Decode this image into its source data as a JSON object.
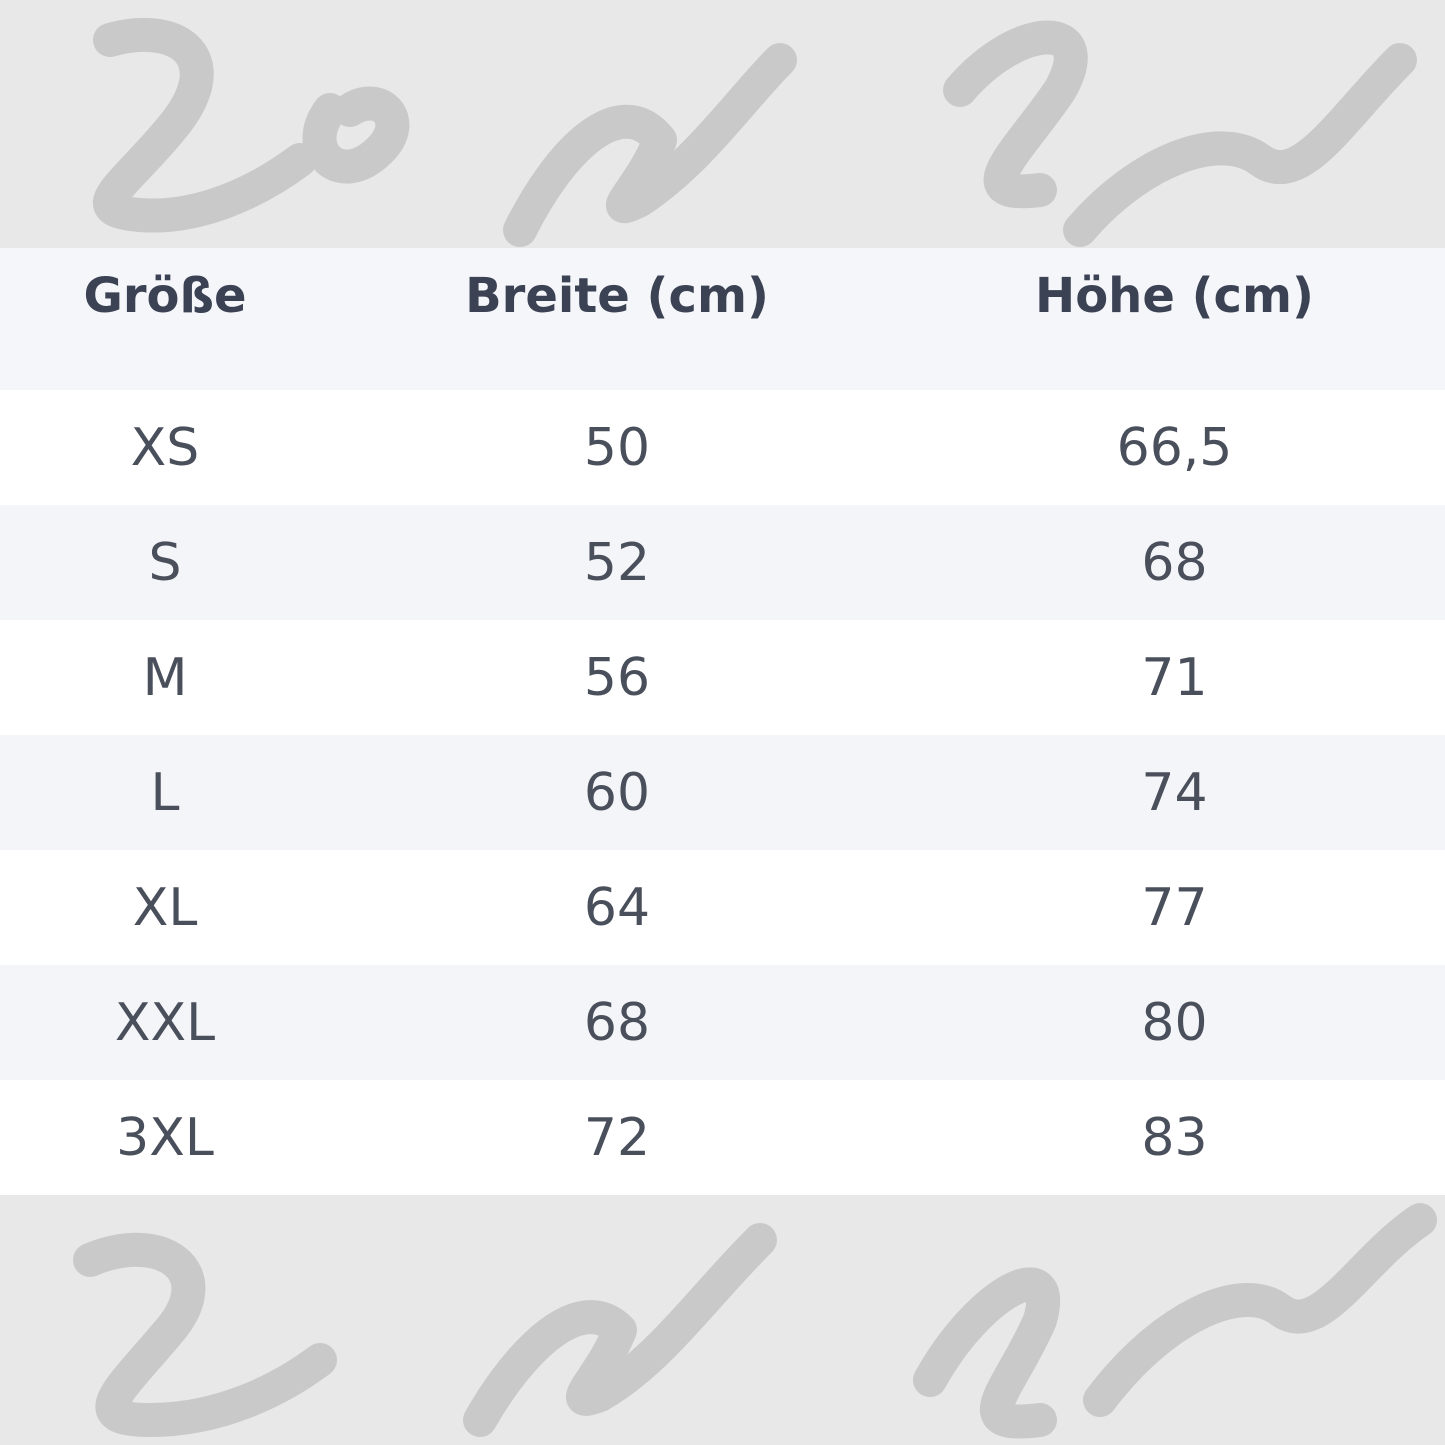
{
  "watermark": "Low and Lower",
  "table": {
    "headers": [
      "Größe",
      "Breite (cm)",
      "Höhe (cm)"
    ],
    "rows": [
      [
        "XS",
        "50",
        "66,5"
      ],
      [
        "S",
        "52",
        "68"
      ],
      [
        "M",
        "56",
        "71"
      ],
      [
        "L",
        "60",
        "74"
      ],
      [
        "XL",
        "64",
        "77"
      ],
      [
        "XXL",
        "68",
        "80"
      ],
      [
        "3XL",
        "72",
        "83"
      ]
    ]
  },
  "colors": {
    "background": "#e8e8e8",
    "watermark": "#c9c9c9",
    "header_bg": "#f5f6f9",
    "text": "#3b4254"
  }
}
